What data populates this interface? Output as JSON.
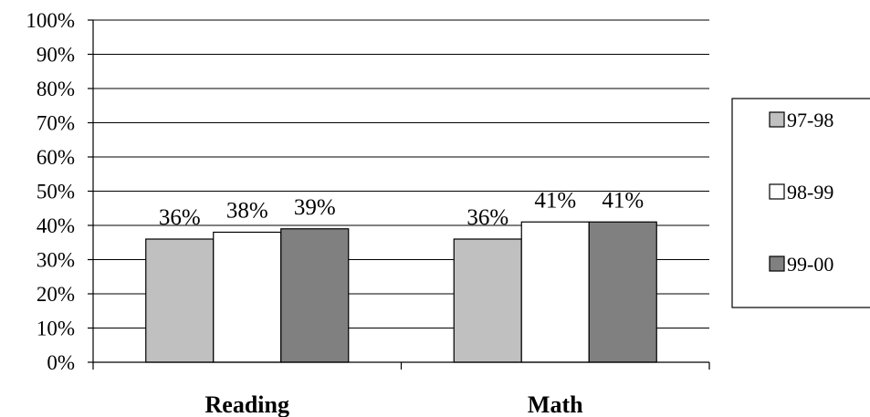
{
  "chart_data": {
    "type": "bar",
    "categories": [
      "Reading",
      "Math"
    ],
    "series": [
      {
        "name": "97-98",
        "values": [
          36,
          36
        ],
        "data_labels": [
          "36%",
          "36%"
        ],
        "color": "#c0c0c0"
      },
      {
        "name": "98-99",
        "values": [
          38,
          41
        ],
        "data_labels": [
          "38%",
          "41%"
        ],
        "color": "#ffffff"
      },
      {
        "name": "99-00",
        "values": [
          39,
          41
        ],
        "data_labels": [
          "39%",
          "41%"
        ],
        "color": "#808080"
      }
    ],
    "y_ticks": [
      "0%",
      "10%",
      "20%",
      "30%",
      "40%",
      "50%",
      "60%",
      "70%",
      "80%",
      "90%",
      "100%"
    ],
    "ylim": [
      0,
      100
    ],
    "title": "",
    "xlabel": "",
    "ylabel": "",
    "grid": true,
    "legend_position": "right"
  }
}
